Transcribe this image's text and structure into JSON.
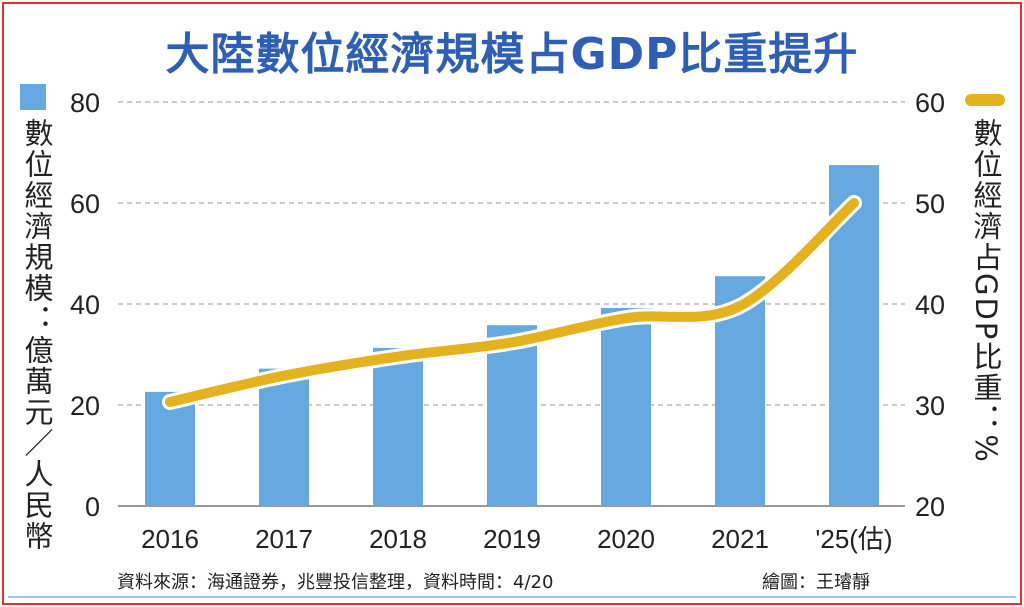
{
  "title": "大陸數位經濟規模占GDP比重提升",
  "footer": {
    "source": "資料來源：海通證券，兆豐投信整理，資料時間：4/20",
    "credit": "繪圖：王璿靜"
  },
  "chart_data": {
    "type": "bar+line",
    "title": "大陸數位經濟規模占GDP比重提升",
    "categories": [
      "2016",
      "2017",
      "2018",
      "2019",
      "2020",
      "2021",
      "'25(估)"
    ],
    "series": [
      {
        "name": "數位經濟規模：億萬元／人民幣",
        "type": "bar",
        "axis": "left",
        "color": "#66a8e0",
        "values": [
          22.6,
          27.2,
          31.3,
          35.8,
          39.2,
          45.5,
          67.5
        ]
      },
      {
        "name": "數位經濟占GDP比重：%",
        "type": "line",
        "axis": "right",
        "color": "#e3b21e",
        "values": [
          30.3,
          32.9,
          34.8,
          36.2,
          38.6,
          39.8,
          50
        ]
      }
    ],
    "ylabel_left": "數位經濟規模：億萬元／人民幣",
    "ylabel_right": "數位經濟占GDP比重：%",
    "ylim_left": [
      0,
      80
    ],
    "ylim_right": [
      20,
      60
    ],
    "yticks_left": [
      "0",
      "20",
      "40",
      "60",
      "80"
    ],
    "yticks_right": [
      "20",
      "30",
      "40",
      "50",
      "60"
    ],
    "grid": true,
    "legend": "top-left and top-right"
  }
}
